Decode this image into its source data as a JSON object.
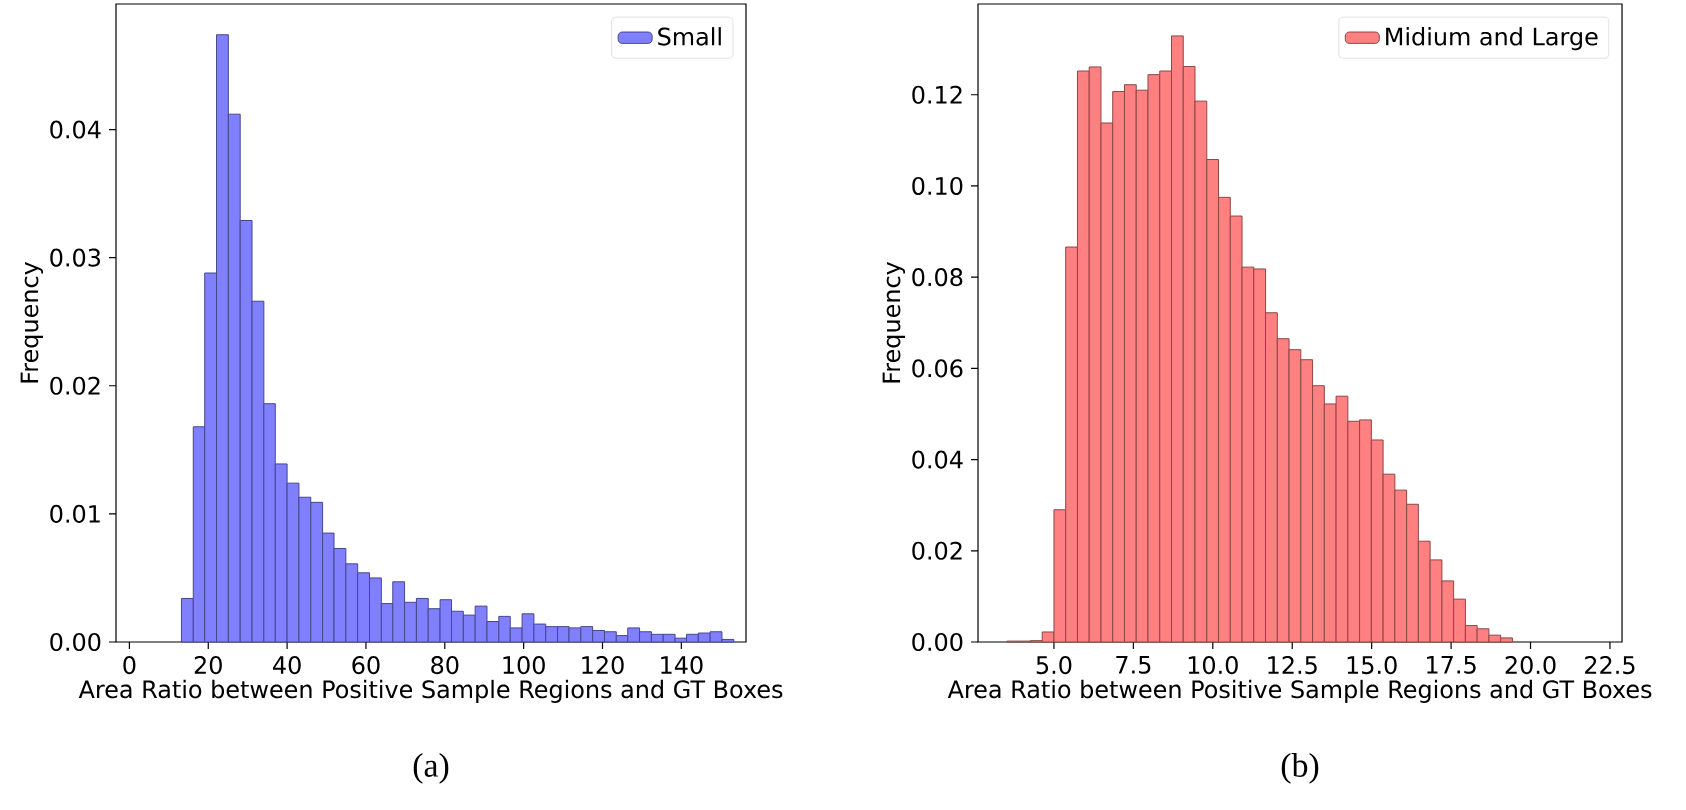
{
  "chart_data": [
    {
      "type": "histogram",
      "xlabel": "Area Ratio between Positive Sample Regions and GT Boxes",
      "ylabel": "Frequency",
      "annotations": [
        "(a)"
      ],
      "legend": "top right",
      "grid": false,
      "bins": [
        13.2,
        16.2,
        19.1,
        22.1,
        25.1,
        28.1,
        31.1,
        34.1,
        37.0,
        40.0,
        43.0,
        46.0,
        49.0,
        51.9,
        54.9,
        57.9,
        60.9,
        63.9,
        66.8,
        69.8,
        72.8,
        75.8,
        78.8,
        81.7,
        84.7,
        87.7,
        90.7,
        93.7,
        96.6,
        99.6,
        102.6,
        105.6,
        108.6,
        111.5,
        114.5,
        117.5,
        120.5,
        123.5,
        126.4,
        129.4,
        132.4,
        135.4,
        138.4,
        141.3,
        144.3,
        147.3,
        150.3,
        153.3
      ],
      "series": [
        {
          "name": "Small",
          "color": "#8080ff",
          "values": [
            0.0034,
            0.0168,
            0.0288,
            0.0474,
            0.0412,
            0.0329,
            0.0266,
            0.0186,
            0.0139,
            0.0124,
            0.0113,
            0.0109,
            0.0085,
            0.0073,
            0.0061,
            0.0054,
            0.005,
            0.003,
            0.0047,
            0.0031,
            0.0034,
            0.0026,
            0.0033,
            0.0024,
            0.0021,
            0.0028,
            0.0016,
            0.002,
            0.0011,
            0.0022,
            0.0014,
            0.0012,
            0.0012,
            0.0011,
            0.0012,
            0.0009,
            0.0008,
            0.0005,
            0.0011,
            0.0008,
            0.0006,
            0.0006,
            0.0003,
            0.0006,
            0.0007,
            0.0008,
            0.0002
          ]
        }
      ],
      "xlim": [
        -3.4,
        156.4
      ],
      "ylim": [
        0,
        0.0498
      ],
      "xticks": [
        0,
        20,
        40,
        60,
        80,
        100,
        120,
        140
      ],
      "yticks": [
        {
          "value": 0,
          "label": "0.00"
        },
        {
          "value": 0.01,
          "label": "0.01"
        },
        {
          "value": 0.02,
          "label": "0.02"
        },
        {
          "value": 0.03,
          "label": "0.03"
        },
        {
          "value": 0.04,
          "label": "0.04"
        }
      ]
    },
    {
      "type": "histogram",
      "xlabel": "Area Ratio between Positive Sample Regions and GT Boxes",
      "ylabel": "Frequency",
      "annotations": [
        "(b)"
      ],
      "legend": "top right",
      "grid": false,
      "bins": [
        3.52,
        3.89,
        4.26,
        4.63,
        5.0,
        5.37,
        5.74,
        6.11,
        6.48,
        6.85,
        7.22,
        7.59,
        7.96,
        8.33,
        8.7,
        9.07,
        9.44,
        9.81,
        10.18,
        10.55,
        10.92,
        11.29,
        11.66,
        12.03,
        12.4,
        12.77,
        13.14,
        13.51,
        13.88,
        14.25,
        14.62,
        14.99,
        15.36,
        15.73,
        16.1,
        16.47,
        16.84,
        17.21,
        17.58,
        17.95,
        18.32,
        18.69,
        19.06,
        19.43
      ],
      "series": [
        {
          "name": "Midium and Large",
          "color": "#ff8080",
          "values": [
            0.0002,
            0.0002,
            0.0003,
            0.0022,
            0.029,
            0.0866,
            0.1252,
            0.1261,
            0.1138,
            0.1207,
            0.1222,
            0.121,
            0.1244,
            0.1252,
            0.1329,
            0.1262,
            0.1186,
            0.1058,
            0.0975,
            0.0934,
            0.0822,
            0.0818,
            0.0722,
            0.0665,
            0.0641,
            0.0619,
            0.0562,
            0.0522,
            0.0539,
            0.0484,
            0.0487,
            0.0443,
            0.0368,
            0.0333,
            0.0302,
            0.0221,
            0.018,
            0.0134,
            0.0094,
            0.0036,
            0.0029,
            0.0015,
            0.0009
          ]
        }
      ],
      "xlim": [
        2.61,
        22.88
      ],
      "ylim": [
        0,
        0.1399
      ],
      "xticks": [
        {
          "value": 5,
          "label": "5.0"
        },
        {
          "value": 7.5,
          "label": "7.5"
        },
        {
          "value": 10,
          "label": "10.0"
        },
        {
          "value": 12.5,
          "label": "12.5"
        },
        {
          "value": 15,
          "label": "15.0"
        },
        {
          "value": 17.5,
          "label": "17.5"
        },
        {
          "value": 20,
          "label": "20.0"
        },
        {
          "value": 22.5,
          "label": "22.5"
        }
      ],
      "yticks": [
        {
          "value": 0,
          "label": "0.00"
        },
        {
          "value": 0.02,
          "label": "0.02"
        },
        {
          "value": 0.04,
          "label": "0.04"
        },
        {
          "value": 0.06,
          "label": "0.06"
        },
        {
          "value": 0.08,
          "label": "0.08"
        },
        {
          "value": 0.1,
          "label": "0.10"
        },
        {
          "value": 0.12,
          "label": "0.12"
        }
      ]
    }
  ]
}
